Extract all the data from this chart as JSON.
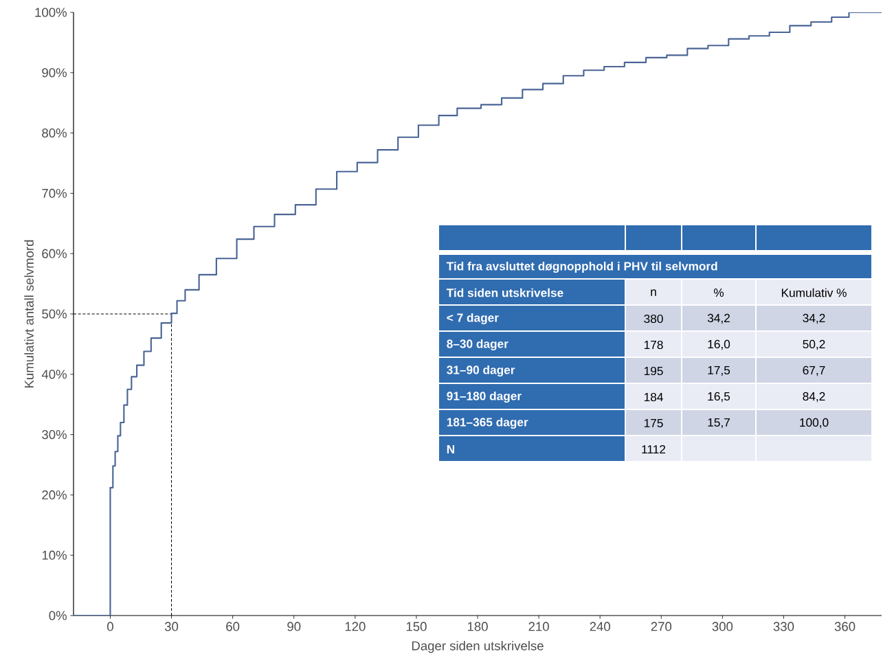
{
  "chart_data": {
    "type": "step",
    "xlabel": "Dager siden utskrivelse",
    "ylabel": "Kumulativt antall selvmord",
    "x": [
      -18,
      0,
      1.3,
      2.4,
      3.7,
      5,
      6.7,
      8.4,
      10.4,
      13,
      16.5,
      20,
      25,
      30,
      32.7,
      36.7,
      43.5,
      52,
      62,
      70.4,
      80.5,
      90.7,
      100.8,
      111,
      121,
      131,
      141,
      151,
      161,
      170,
      181.7,
      191.8,
      202,
      212,
      222,
      232,
      242,
      252,
      262.5,
      272.7,
      282.8,
      292.9,
      303,
      313,
      323,
      333,
      343.4,
      353.5,
      362,
      378
    ],
    "values": [
      0,
      21.2,
      24.8,
      27.2,
      29.8,
      32,
      34.9,
      37.5,
      39.6,
      41.5,
      43.8,
      46,
      48.5,
      50.1,
      52.2,
      54,
      56.5,
      59.2,
      62.4,
      64.5,
      66.5,
      68.1,
      70.7,
      73.6,
      75.1,
      77.2,
      79.3,
      81.3,
      82.9,
      84.1,
      84.7,
      85.8,
      87.2,
      88.2,
      89.5,
      90.4,
      91,
      91.7,
      92.5,
      92.9,
      94,
      94.5,
      95.6,
      96.1,
      96.7,
      97.8,
      98.4,
      99.2,
      100,
      100
    ],
    "color": "#4a6496",
    "xlim": [
      -18,
      378
    ],
    "ylim": [
      0,
      100
    ],
    "xticks": [
      0,
      30,
      60,
      90,
      120,
      150,
      180,
      210,
      240,
      270,
      300,
      330,
      360
    ],
    "yticks": [
      {
        "value": 0,
        "label": "0%"
      },
      {
        "value": 10,
        "label": "10%"
      },
      {
        "value": 20,
        "label": "20%"
      },
      {
        "value": 30,
        "label": "30%"
      },
      {
        "value": 40,
        "label": "40%"
      },
      {
        "value": 50,
        "label": "50%"
      },
      {
        "value": 60,
        "label": "60%"
      },
      {
        "value": 70,
        "label": "70%"
      },
      {
        "value": 80,
        "label": "80%"
      },
      {
        "value": 90,
        "label": "90%"
      },
      {
        "value": 100,
        "label": "100%"
      }
    ],
    "ref_lines": [
      {
        "axis": "x",
        "value": 30,
        "color": "#000000",
        "line_style": "dashed"
      },
      {
        "axis": "y",
        "value": 50,
        "color": "#000000",
        "line_style": "dashed"
      }
    ],
    "annotations": [
      "Tid fra avsluttet døgnopphold i PHV til selvmord",
      "Tid siden utskrivelse",
      "n",
      "%",
      "Kumulativ %",
      "< 7 dager",
      "380",
      "34,2",
      "34,2",
      "8–30 dager",
      "178",
      "16,0",
      "50,2",
      "31–90 dager",
      "195",
      "17,5",
      "67,7",
      "91–180 dager",
      "184",
      "16,5",
      "84,2",
      "181–365 dager",
      "175",
      "15,7",
      "100,0",
      "N",
      "1112"
    ]
  }
}
